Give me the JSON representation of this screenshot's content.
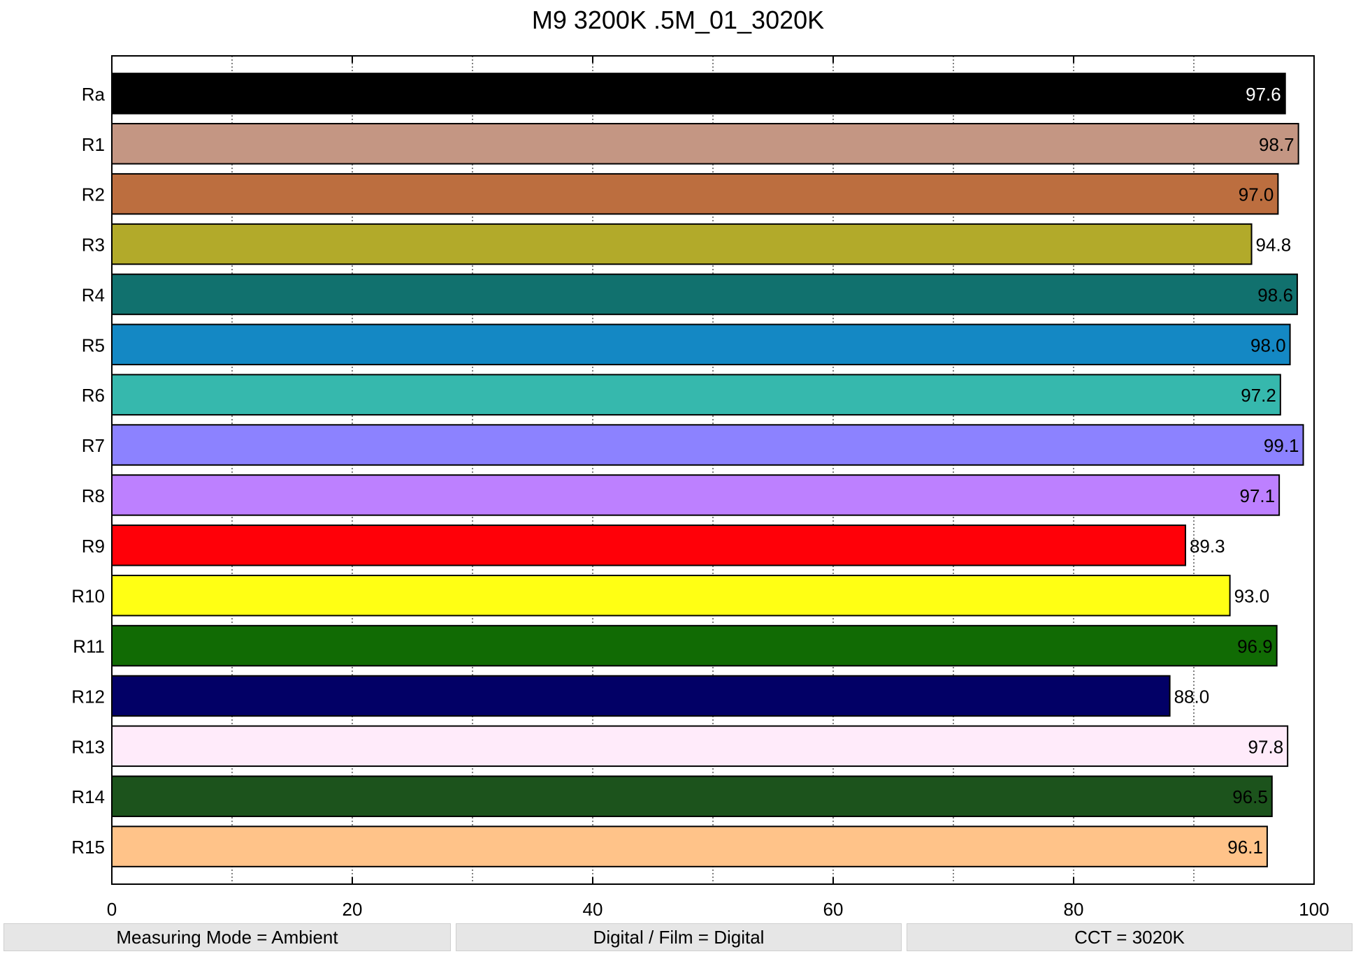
{
  "chart_data": {
    "type": "bar",
    "orientation": "horizontal",
    "title": "M9 3200K .5M_01_3020K",
    "xlabel": "",
    "ylabel": "",
    "xlim": [
      0,
      100
    ],
    "x_ticks": [
      "0",
      "20",
      "40",
      "60",
      "80",
      "100"
    ],
    "grid": "vertical dotted",
    "categories": [
      "Ra",
      "R1",
      "R2",
      "R3",
      "R4",
      "R5",
      "R6",
      "R7",
      "R8",
      "R9",
      "R10",
      "R11",
      "R12",
      "R13",
      "R14",
      "R15"
    ],
    "values": [
      97.6,
      98.7,
      97.0,
      94.8,
      98.6,
      98.0,
      97.2,
      99.1,
      97.1,
      89.3,
      93.0,
      96.9,
      88.0,
      97.8,
      96.5,
      96.1
    ],
    "value_labels": [
      "97.6",
      "98.7",
      "97.0",
      "94.8",
      "98.6",
      "98.0",
      "97.2",
      "99.1",
      "97.1",
      "89.3",
      "93.0",
      "96.9",
      "88.0",
      "97.8",
      "96.5",
      "96.1"
    ],
    "colors": [
      "#000000",
      "#c49683",
      "#bc6e3f",
      "#b2aa2a",
      "#11716e",
      "#1488c4",
      "#36b8ad",
      "#8c82ff",
      "#bd80ff",
      "#ff0008",
      "#ffff14",
      "#116b04",
      "#020066",
      "#ffebfa",
      "#1c531c",
      "#ffc389"
    ],
    "label_colors": [
      "#ffffff",
      "#000000",
      "#000000",
      "#000000",
      "#000000",
      "#000000",
      "#000000",
      "#000000",
      "#000000",
      "#000000",
      "#000000",
      "#000000",
      "#000000",
      "#000000",
      "#000000",
      "#000000"
    ]
  },
  "status": {
    "measuring_mode": "Measuring Mode = Ambient",
    "digital_film": "Digital / Film = Digital",
    "cct": "CCT = 3020K"
  }
}
